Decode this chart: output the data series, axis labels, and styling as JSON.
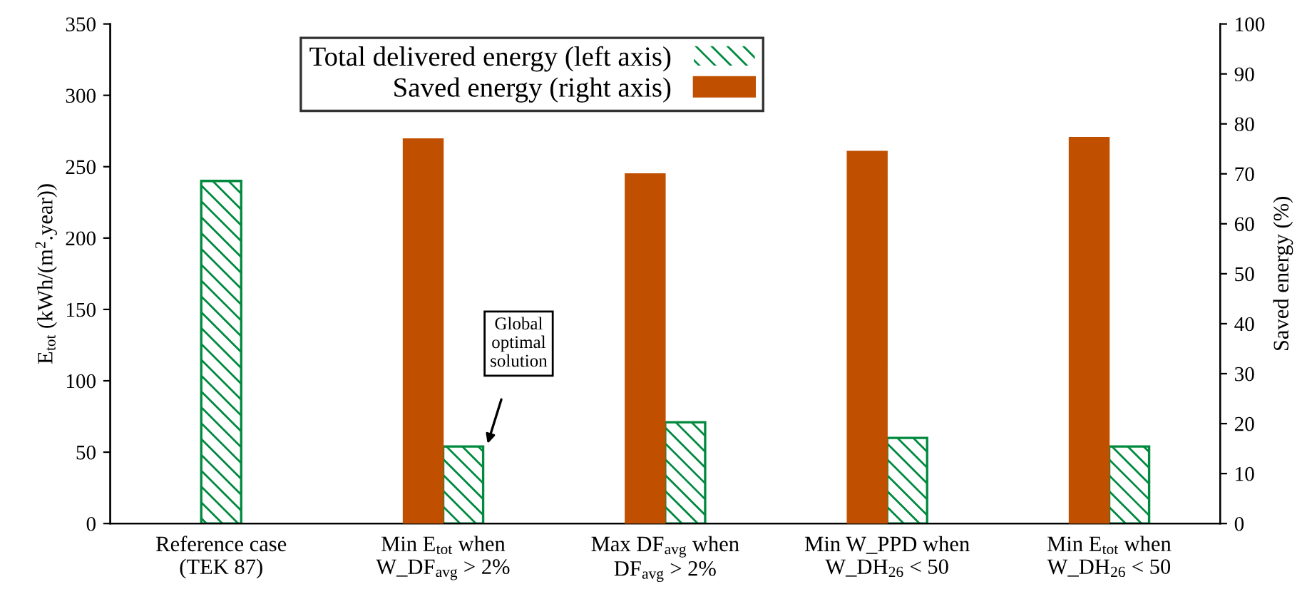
{
  "chart_data": {
    "type": "bar",
    "categories": [
      "Reference case\n(TEK 87)",
      "Min E$_{tot}$ when\nW_DF$_{avg}$ > 2%",
      "Max DF$_{avg}$ when\nDF$_{avg}$ > 2%",
      "Min W_PPD when\nW_DH$_{26}$ < 50",
      "Min E$_{tot}$ when\nW_DH$_{26}$ < 50"
    ],
    "series": [
      {
        "name": "Total delivered energy (left axis)",
        "color": "#008a3e",
        "values": [
          240,
          54,
          71,
          60,
          54
        ]
      },
      {
        "name": "Saved energy (right axis)",
        "color": "#c05000",
        "axis": "y2",
        "values": [
          null,
          77,
          70,
          74.5,
          77.3
        ]
      }
    ],
    "ylabel": "E$_{tot}$ (kWh/(m$^{2}$.year))",
    "y2label": "Saved energy (%)",
    "ylim": [
      0,
      350
    ],
    "yticks": [
      0,
      50,
      100,
      150,
      200,
      250,
      300,
      350
    ],
    "y2lim": [
      0,
      100
    ],
    "y2ticks": [
      0,
      10,
      20,
      30,
      40,
      50,
      60,
      70,
      80,
      90,
      100
    ],
    "annotations": [
      "Global\noptimal\nsolution"
    ],
    "legend": "top",
    "grid": false
  }
}
